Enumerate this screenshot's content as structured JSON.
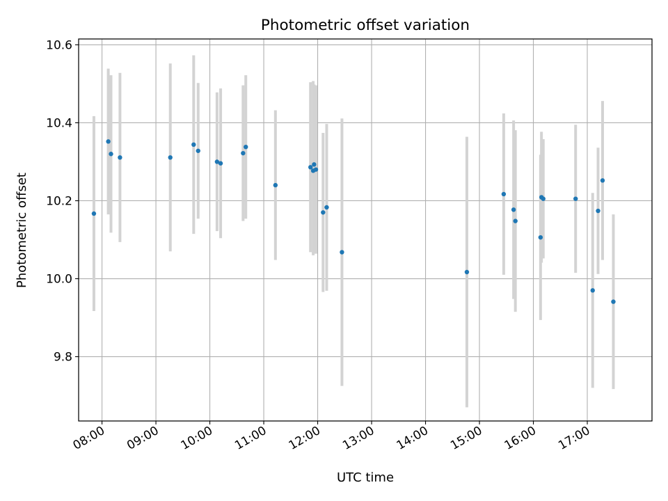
{
  "chart_data": {
    "type": "scatter",
    "title": "Photometric offset variation",
    "xlabel": "UTC time",
    "ylabel": "Photometric offset",
    "grid": true,
    "legend": "none",
    "x_tick_labels": [
      "08:00",
      "09:00",
      "10:00",
      "11:00",
      "12:00",
      "13:00",
      "14:00",
      "15:00",
      "16:00",
      "17:00"
    ],
    "y_tick_labels": [
      "9.8",
      "10.0",
      "10.2",
      "10.4",
      "10.6"
    ],
    "y_ticks": [
      9.8,
      10.0,
      10.2,
      10.4,
      10.6
    ],
    "xlim": [
      "07:34",
      "18:12"
    ],
    "ylim": [
      9.635,
      10.615
    ],
    "colors": {
      "points": "#1f77b4",
      "errorbars": "#d3d3d3",
      "grid": "#b0b0b0"
    },
    "points": [
      {
        "x": "07:51",
        "y": 10.167,
        "ylow": 9.917,
        "yhigh": 10.417
      },
      {
        "x": "08:07",
        "y": 10.352,
        "ylow": 10.165,
        "yhigh": 10.539
      },
      {
        "x": "08:10",
        "y": 10.32,
        "ylow": 10.118,
        "yhigh": 10.522
      },
      {
        "x": "08:20",
        "y": 10.311,
        "ylow": 10.094,
        "yhigh": 10.528
      },
      {
        "x": "09:16",
        "y": 10.311,
        "ylow": 10.07,
        "yhigh": 10.552
      },
      {
        "x": "09:42",
        "y": 10.344,
        "ylow": 10.115,
        "yhigh": 10.573
      },
      {
        "x": "09:47",
        "y": 10.328,
        "ylow": 10.154,
        "yhigh": 10.502
      },
      {
        "x": "10:08",
        "y": 10.3,
        "ylow": 10.122,
        "yhigh": 10.478
      },
      {
        "x": "10:12",
        "y": 10.296,
        "ylow": 10.104,
        "yhigh": 10.488
      },
      {
        "x": "10:37",
        "y": 10.322,
        "ylow": 10.148,
        "yhigh": 10.496
      },
      {
        "x": "10:40",
        "y": 10.338,
        "ylow": 10.154,
        "yhigh": 10.522
      },
      {
        "x": "11:13",
        "y": 10.24,
        "ylow": 10.048,
        "yhigh": 10.432
      },
      {
        "x": "11:52",
        "y": 10.286,
        "ylow": 10.068,
        "yhigh": 10.504
      },
      {
        "x": "11:55",
        "y": 10.277,
        "ylow": 10.06,
        "yhigh": 10.507
      },
      {
        "x": "11:56",
        "y": 10.293,
        "ylow": 10.088,
        "yhigh": 10.498
      },
      {
        "x": "11:58",
        "y": 10.28,
        "ylow": 10.064,
        "yhigh": 10.496
      },
      {
        "x": "12:06",
        "y": 10.17,
        "ylow": 9.966,
        "yhigh": 10.374
      },
      {
        "x": "12:10",
        "y": 10.183,
        "ylow": 9.969,
        "yhigh": 10.397
      },
      {
        "x": "12:27",
        "y": 10.068,
        "ylow": 9.725,
        "yhigh": 10.411
      },
      {
        "x": "14:46",
        "y": 10.017,
        "ylow": 9.67,
        "yhigh": 10.364
      },
      {
        "x": "15:27",
        "y": 10.217,
        "ylow": 10.01,
        "yhigh": 10.424
      },
      {
        "x": "15:38",
        "y": 10.177,
        "ylow": 9.948,
        "yhigh": 10.406
      },
      {
        "x": "15:40",
        "y": 10.148,
        "ylow": 9.915,
        "yhigh": 10.381
      },
      {
        "x": "16:08",
        "y": 10.106,
        "ylow": 9.894,
        "yhigh": 10.318
      },
      {
        "x": "16:09",
        "y": 10.209,
        "ylow": 10.041,
        "yhigh": 10.377
      },
      {
        "x": "16:11",
        "y": 10.205,
        "ylow": 10.052,
        "yhigh": 10.358
      },
      {
        "x": "16:47",
        "y": 10.205,
        "ylow": 10.015,
        "yhigh": 10.395
      },
      {
        "x": "17:06",
        "y": 9.97,
        "ylow": 9.72,
        "yhigh": 10.22
      },
      {
        "x": "17:12",
        "y": 10.174,
        "ylow": 10.012,
        "yhigh": 10.336
      },
      {
        "x": "17:17",
        "y": 10.252,
        "ylow": 10.048,
        "yhigh": 10.456
      },
      {
        "x": "17:29",
        "y": 9.941,
        "ylow": 9.717,
        "yhigh": 10.165
      }
    ]
  }
}
